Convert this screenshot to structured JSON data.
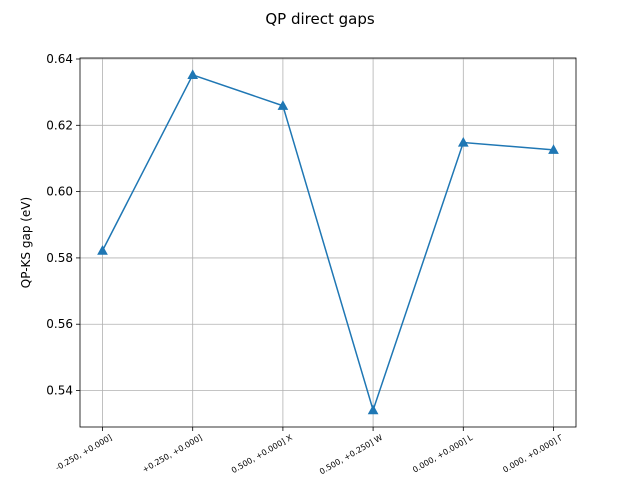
{
  "chart_data": {
    "type": "line",
    "title": "QP direct gaps",
    "xlabel": "",
    "ylabel": "QP-KS gap (eV)",
    "categories": [
      "-0.250, +0.000]",
      "+0.250, +0.000]",
      "0.500, +0.000] X",
      "0.500, +0.250] W",
      "0.000, +0.000] L",
      "0.000, +0.000] Γ"
    ],
    "values": [
      0.5822,
      0.6352,
      0.6259,
      0.5341,
      0.6148,
      0.6126
    ],
    "ylim": [
      0.529,
      0.6403
    ],
    "yticks": [
      0.54,
      0.56,
      0.58,
      0.6,
      0.62,
      0.64
    ],
    "ytick_labels": [
      "0.54",
      "0.56",
      "0.58",
      "0.60",
      "0.62",
      "0.64"
    ],
    "marker": "triangle-up",
    "grid": true,
    "legend": "none",
    "colors": {
      "series": "#1f77b4",
      "grid": "#b0b0b0"
    }
  }
}
